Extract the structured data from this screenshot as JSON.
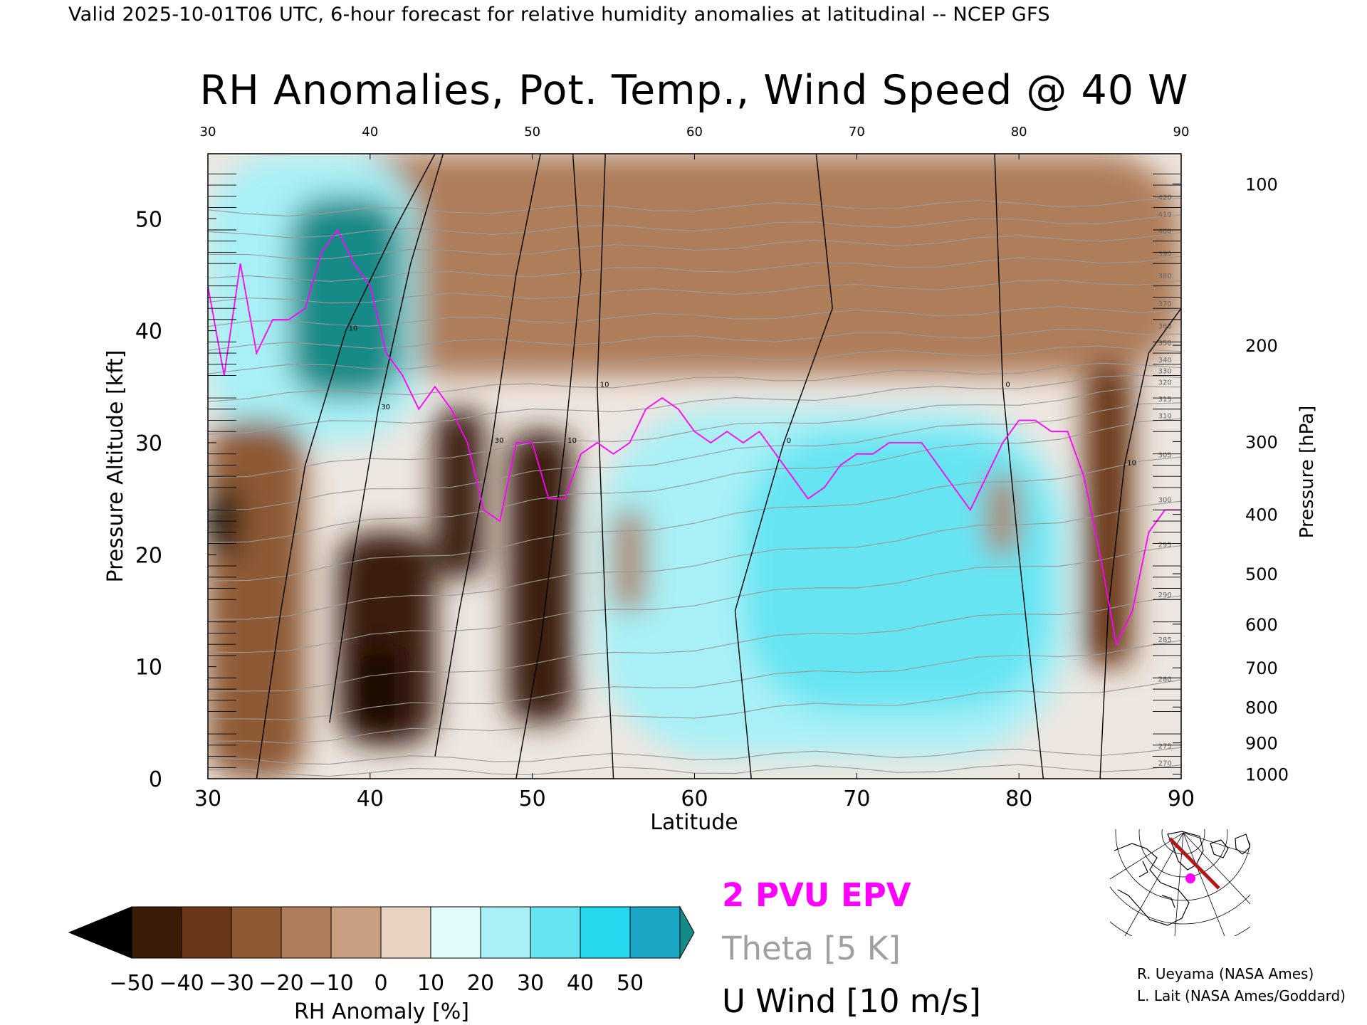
{
  "header": "Valid 2025-10-01T06 UTC, 6-hour forecast for relative humidity anomalies at latitudinal -- NCEP GFS",
  "colors": {
    "epv": "#ff00ff",
    "theta": "#999999",
    "wind": "#000000",
    "route": "#b01818",
    "marker": "#ff00ff"
  },
  "chart_data": {
    "type": "heatmap",
    "title": "RH Anomalies, Pot. Temp., Wind Speed @ 40 W",
    "xlabel": "Latitude",
    "ylabel": "Pressure Altitude [kft]",
    "ylabel_right": "Pressure [hPa]",
    "xlim": [
      30,
      90
    ],
    "ylim": [
      0,
      55.8
    ],
    "x_ticks": [
      30,
      40,
      50,
      60,
      70,
      80,
      90
    ],
    "x_ticks_top": [
      30,
      40,
      50,
      60,
      70,
      80,
      90
    ],
    "y_ticks": [
      0,
      10,
      20,
      30,
      40,
      50
    ],
    "pressure_ticks": [
      {
        "hpa": 100,
        "kft": 53.1
      },
      {
        "hpa": 200,
        "kft": 38.7
      },
      {
        "hpa": 300,
        "kft": 30.1
      },
      {
        "hpa": 400,
        "kft": 23.6
      },
      {
        "hpa": 500,
        "kft": 18.3
      },
      {
        "hpa": 600,
        "kft": 13.8
      },
      {
        "hpa": 700,
        "kft": 9.9
      },
      {
        "hpa": 800,
        "kft": 6.4
      },
      {
        "hpa": 900,
        "kft": 3.2
      },
      {
        "hpa": 1000,
        "kft": 0.4
      }
    ],
    "colorbar": {
      "label": "RH Anomaly [%]",
      "ticks": [
        -50,
        -40,
        -30,
        -20,
        -10,
        0,
        10,
        20,
        30,
        40,
        50
      ],
      "colors": [
        "#3b1a08",
        "#6a3818",
        "#8e5a34",
        "#ae7d5a",
        "#c99f82",
        "#e8d2c2",
        "#e2fbfb",
        "#a8f0f6",
        "#66e4f2",
        "#26d8ee",
        "#1aa6c4"
      ],
      "low_color": "#000000",
      "high_color": "#138a86"
    },
    "rh_regions": [
      {
        "x": [
          30,
          90
        ],
        "y": [
          36,
          55.8
        ],
        "anom": -15
      },
      {
        "x": [
          30,
          43
        ],
        "y": [
          30,
          55.8
        ],
        "anom": 25
      },
      {
        "x": [
          35,
          42
        ],
        "y": [
          34,
          52
        ],
        "anom": 55
      },
      {
        "x": [
          54,
          83
        ],
        "y": [
          2,
          33
        ],
        "anom": 20
      },
      {
        "x": [
          63,
          82
        ],
        "y": [
          6,
          31
        ],
        "anom": 35
      },
      {
        "x": [
          30,
          36
        ],
        "y": [
          0,
          32
        ],
        "anom": -25
      },
      {
        "x": [
          38,
          44
        ],
        "y": [
          3,
          22
        ],
        "anom": -45
      },
      {
        "x": [
          44,
          47
        ],
        "y": [
          18,
          33
        ],
        "anom": -45
      },
      {
        "x": [
          48.5,
          52.5
        ],
        "y": [
          5,
          31
        ],
        "anom": -45
      },
      {
        "x": [
          30,
          32
        ],
        "y": [
          20,
          26
        ],
        "anom": -55
      },
      {
        "x": [
          39.5,
          41.5
        ],
        "y": [
          4,
          12
        ],
        "anom": -60
      },
      {
        "x": [
          55,
          57
        ],
        "y": [
          15,
          24
        ],
        "anom": -20
      },
      {
        "x": [
          84,
          87
        ],
        "y": [
          10,
          37
        ],
        "anom": -40
      },
      {
        "x": [
          78,
          80
        ],
        "y": [
          20,
          27
        ],
        "anom": -20
      }
    ],
    "theta_contours": [
      {
        "value": 270,
        "y0": 0.5,
        "y1": 1.0
      },
      {
        "value": 275,
        "y0": 1.5,
        "y1": 2.5
      },
      {
        "value": 280,
        "y0": 3.0,
        "y1": 8.5
      },
      {
        "value": 285,
        "y0": 5.0,
        "y1": 12.0
      },
      {
        "value": 290,
        "y0": 7.5,
        "y1": 16.0
      },
      {
        "value": 295,
        "y0": 11.0,
        "y1": 20.5
      },
      {
        "value": 300,
        "y0": 14.0,
        "y1": 24.5
      },
      {
        "value": 305,
        "y0": 17.5,
        "y1": 28.5
      },
      {
        "value": 310,
        "y0": 21.0,
        "y1": 32.0
      },
      {
        "value": 315,
        "y0": 24.0,
        "y1": 33.5
      },
      {
        "value": 320,
        "y0": 27.0,
        "y1": 35.0
      },
      {
        "value": 330,
        "y0": 31.0,
        "y1": 36.0
      },
      {
        "value": 340,
        "y0": 34.0,
        "y1": 37.0
      },
      {
        "value": 350,
        "y0": 36.5,
        "y1": 38.5
      },
      {
        "value": 360,
        "y0": 38.5,
        "y1": 40.0
      },
      {
        "value": 370,
        "y0": 40.5,
        "y1": 42.0
      },
      {
        "value": 380,
        "y0": 42.5,
        "y1": 44.5
      },
      {
        "value": 390,
        "y0": 44.5,
        "y1": 46.5
      },
      {
        "value": 400,
        "y0": 46.5,
        "y1": 48.5
      },
      {
        "value": 410,
        "y0": 48.5,
        "y1": 50.0
      },
      {
        "value": 420,
        "y0": 50.5,
        "y1": 51.5
      }
    ],
    "wind_contours": [
      {
        "label": "10",
        "points": [
          [
            33.0,
            0
          ],
          [
            34.5,
            15
          ],
          [
            36.0,
            28
          ],
          [
            38.5,
            40
          ],
          [
            41.5,
            49
          ],
          [
            44.0,
            55.8
          ]
        ]
      },
      {
        "label": "30",
        "points": [
          [
            37.5,
            5
          ],
          [
            39.0,
            20
          ],
          [
            40.5,
            33
          ],
          [
            42.5,
            46
          ],
          [
            44.5,
            55.8
          ]
        ]
      },
      {
        "label": "30",
        "points": [
          [
            44.0,
            2
          ],
          [
            45.5,
            15
          ],
          [
            47.5,
            30
          ],
          [
            49.0,
            45
          ],
          [
            50.5,
            55.8
          ]
        ]
      },
      {
        "label": "10",
        "points": [
          [
            49.0,
            0
          ],
          [
            50.5,
            12
          ],
          [
            52.0,
            30
          ],
          [
            53.0,
            45
          ],
          [
            52.5,
            55.8
          ]
        ]
      },
      {
        "label": "10",
        "points": [
          [
            55.0,
            0
          ],
          [
            54.5,
            15
          ],
          [
            54.0,
            35
          ],
          [
            54.5,
            55.8
          ]
        ]
      },
      {
        "label": "0",
        "points": [
          [
            63.5,
            0
          ],
          [
            62.5,
            15
          ],
          [
            65.5,
            30
          ],
          [
            68.5,
            42
          ],
          [
            67.5,
            55.8
          ]
        ]
      },
      {
        "label": "0",
        "points": [
          [
            81.5,
            0
          ],
          [
            80.0,
            20
          ],
          [
            79.0,
            35
          ],
          [
            78.5,
            55.8
          ]
        ]
      },
      {
        "label": "10",
        "points": [
          [
            85.0,
            0
          ],
          [
            85.5,
            15
          ],
          [
            86.5,
            28
          ],
          [
            88.0,
            38
          ],
          [
            90.0,
            42
          ]
        ]
      }
    ],
    "epv_2pvu": {
      "x": [
        30,
        31,
        32,
        33,
        34,
        35,
        36,
        37,
        38,
        39,
        40,
        41,
        42,
        43,
        44,
        45,
        46,
        47,
        48,
        49,
        50,
        51,
        52,
        53,
        54,
        55,
        56,
        57,
        58,
        59,
        60,
        61,
        62,
        63,
        64,
        65,
        66,
        67,
        68,
        69,
        70,
        71,
        72,
        73,
        74,
        75,
        76,
        77,
        78,
        79,
        80,
        81,
        82,
        83,
        84,
        85,
        86,
        87,
        88,
        89,
        90
      ],
      "y": [
        44,
        36,
        46,
        38,
        41,
        41,
        42,
        47,
        49,
        46,
        44,
        38,
        36,
        33,
        35,
        33,
        30,
        24,
        23,
        30,
        30,
        25,
        25,
        29,
        30,
        29,
        30,
        33,
        34,
        33,
        31,
        30,
        31,
        30,
        31,
        29,
        27,
        25,
        26,
        28,
        29,
        29,
        30,
        30,
        30,
        28,
        26,
        24,
        27,
        30,
        32,
        32,
        31,
        31,
        27,
        20,
        12,
        15,
        22,
        24,
        24
      ]
    }
  },
  "legend": {
    "epv": "2 PVU EPV",
    "theta": "Theta [5 K]",
    "wind": "U Wind [10 m/s]"
  },
  "credits": {
    "line1": "R. Ueyama (NASA Ames)",
    "line2": "L. Lait (NASA Ames/Goddard)"
  },
  "inset_map": {
    "route_color": "#b01818",
    "marker_color": "#ff00ff"
  }
}
